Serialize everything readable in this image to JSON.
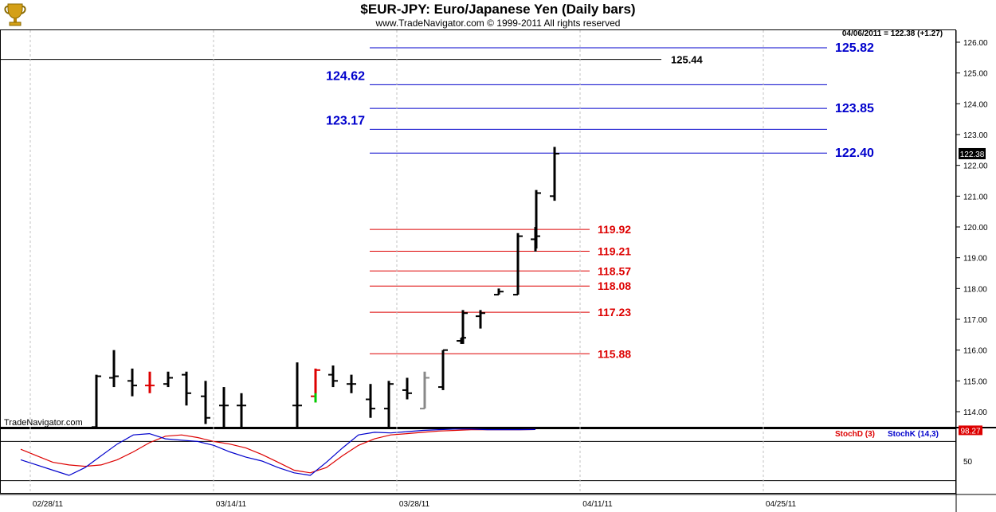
{
  "title": "$EUR-JPY:  Euro/Japanese Yen  (Daily bars)",
  "subtitle": "www.TradeNavigator.com © 1999-2011 All rights reserved",
  "watermark": "TradeNavigator.com",
  "quote_readout": "04/06/2011 = 122.38 (+1.27)",
  "last_price_label": "122.38",
  "colors": {
    "blue": "#0000cc",
    "red": "#dd0000",
    "black": "#000000",
    "grid": "#c0c0c0",
    "bar_black": "#000000",
    "bar_red": "#ff0000",
    "bar_green": "#00cc00",
    "bar_gray": "#888888"
  },
  "chart_data": [
    {
      "type": "ohlc",
      "ylim": [
        113.5,
        126.3
      ],
      "yticks": [
        "114.00",
        "115.00",
        "116.00",
        "117.00",
        "118.00",
        "119.00",
        "120.00",
        "121.00",
        "122.00",
        "123.00",
        "124.00",
        "125.00",
        "126.00"
      ],
      "xticks": [
        "02/28/11",
        "03/14/11",
        "03/28/11",
        "04/11/11",
        "04/25/11"
      ],
      "bars": [
        {
          "date": "02/25/11",
          "o": 113.5,
          "h": 113.5,
          "l": 113.5,
          "c": 113.5
        },
        {
          "date": "02/28/11",
          "o": 113.5,
          "h": 115.2,
          "l": 113.5,
          "c": 115.15
        },
        {
          "date": "03/01/11",
          "o": 115.1,
          "h": 116.0,
          "l": 114.8,
          "c": 115.15
        },
        {
          "date": "03/02/11",
          "o": 115.0,
          "h": 115.4,
          "l": 114.5,
          "c": 114.85
        },
        {
          "date": "03/03/11",
          "o": 114.85,
          "h": 115.3,
          "l": 114.6,
          "c": 114.85,
          "color": "red"
        },
        {
          "date": "03/04/11",
          "o": 114.9,
          "h": 115.3,
          "l": 114.8,
          "c": 115.1
        },
        {
          "date": "03/07/11",
          "o": 115.2,
          "h": 115.3,
          "l": 114.2,
          "c": 114.6
        },
        {
          "date": "03/08/11",
          "o": 114.5,
          "h": 115.0,
          "l": 113.6,
          "c": 113.8
        },
        {
          "date": "03/09/11",
          "o": 114.2,
          "h": 114.8,
          "l": 113.5,
          "c": 114.2
        },
        {
          "date": "03/10/11",
          "o": 114.2,
          "h": 114.6,
          "l": 113.5,
          "c": 114.2
        },
        {
          "date": "03/15/11",
          "o": 114.2,
          "h": 115.6,
          "l": 113.5,
          "c": 114.2
        },
        {
          "date": "03/16/11",
          "o": 114.5,
          "h": 115.4,
          "l": 114.3,
          "c": 115.35,
          "color": "red"
        },
        {
          "date": "03/17/11",
          "o": 115.2,
          "h": 115.5,
          "l": 114.8,
          "c": 115.0
        },
        {
          "date": "03/18/11",
          "o": 114.9,
          "h": 115.2,
          "l": 114.6,
          "c": 114.9
        },
        {
          "date": "03/21/11",
          "o": 114.4,
          "h": 114.9,
          "l": 113.8,
          "c": 114.1
        },
        {
          "date": "03/22/11",
          "o": 114.1,
          "h": 115.0,
          "l": 113.5,
          "c": 114.9
        },
        {
          "date": "03/23/11",
          "o": 114.7,
          "h": 115.1,
          "l": 114.4,
          "c": 114.6
        },
        {
          "date": "03/24/11",
          "o": 114.1,
          "h": 115.3,
          "l": 114.1,
          "c": 115.1,
          "color": "gray"
        },
        {
          "date": "03/25/11",
          "o": 114.8,
          "h": 116.0,
          "l": 114.7,
          "c": 116.0
        },
        {
          "date": "03/28/11",
          "o": 116.3,
          "h": 116.4,
          "l": 116.2,
          "c": 116.4
        },
        {
          "date": "03/29/11",
          "o": 116.3,
          "h": 117.3,
          "l": 116.2,
          "c": 117.2
        },
        {
          "date": "03/30/11",
          "o": 117.1,
          "h": 117.3,
          "l": 116.7,
          "c": 117.2
        },
        {
          "date": "03/31/11",
          "o": 117.8,
          "h": 118.0,
          "l": 117.8,
          "c": 117.9
        },
        {
          "date": "04/01/11",
          "o": 117.8,
          "h": 119.8,
          "l": 117.8,
          "c": 119.7
        },
        {
          "date": "04/04/11",
          "o": 119.6,
          "h": 120.0,
          "l": 119.2,
          "c": 119.7
        },
        {
          "date": "04/05/11",
          "o": 119.6,
          "h": 121.2,
          "l": 119.3,
          "c": 121.1
        },
        {
          "date": "04/06/11",
          "o": 121.0,
          "h": 122.6,
          "l": 120.85,
          "c": 122.38
        }
      ],
      "hlines": [
        {
          "value": 125.44,
          "label": "125.44",
          "color": "black"
        },
        {
          "value": 125.82,
          "label": "125.82",
          "color": "blue"
        },
        {
          "value": 124.62,
          "label": "124.62",
          "color": "blue"
        },
        {
          "value": 123.85,
          "label": "123.85",
          "color": "blue"
        },
        {
          "value": 123.17,
          "label": "123.17",
          "color": "blue"
        },
        {
          "value": 122.4,
          "label": "122.40",
          "color": "blue"
        },
        {
          "value": 119.92,
          "label": "119.92",
          "color": "red"
        },
        {
          "value": 119.21,
          "label": "119.21",
          "color": "red"
        },
        {
          "value": 118.57,
          "label": "118.57",
          "color": "red"
        },
        {
          "value": 118.08,
          "label": "118.08",
          "color": "red"
        },
        {
          "value": 117.23,
          "label": "117.23",
          "color": "red"
        },
        {
          "value": 115.88,
          "label": "115.88",
          "color": "red"
        }
      ]
    },
    {
      "type": "line",
      "ylim": [
        0,
        100
      ],
      "yticks": [
        "50"
      ],
      "reference_lines": [
        20,
        80
      ],
      "last_value_label": "98.27",
      "series": [
        {
          "name": "StochD (3)",
          "color": "red",
          "values": [
            68,
            58,
            48,
            44,
            42,
            44,
            52,
            64,
            78,
            88,
            90,
            86,
            80,
            76,
            70,
            60,
            48,
            36,
            32,
            40,
            58,
            74,
            84,
            90,
            92,
            94,
            96,
            97,
            98,
            98,
            98,
            98,
            98.27
          ]
        },
        {
          "name": "StochK (14,3)",
          "color": "blue",
          "values": [
            52,
            44,
            36,
            28,
            40,
            58,
            76,
            90,
            92,
            84,
            82,
            80,
            74,
            64,
            56,
            50,
            40,
            32,
            28,
            48,
            70,
            90,
            94,
            93,
            95,
            97,
            98,
            99,
            99,
            98,
            98,
            98,
            98.27
          ]
        }
      ]
    }
  ]
}
